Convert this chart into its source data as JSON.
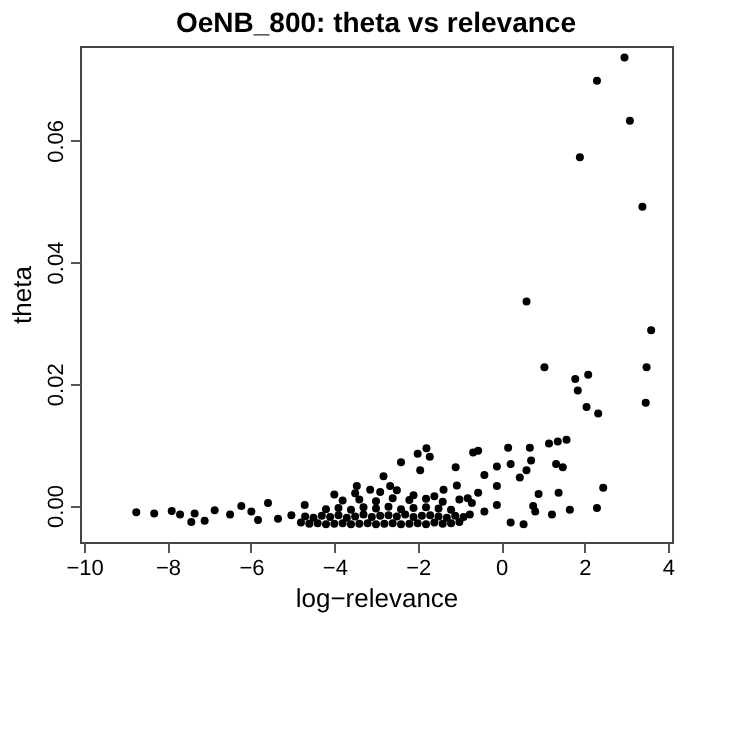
{
  "chart_data": {
    "type": "scatter",
    "title": "OeNB_800: theta vs relevance",
    "xlabel": "log−relevance",
    "ylabel": "theta",
    "xlim": [
      -10.1,
      4.1
    ],
    "ylim": [
      -0.006,
      0.0755
    ],
    "xticks": [
      -10,
      -8,
      -6,
      -4,
      -2,
      0,
      2,
      4
    ],
    "yticks": [
      {
        "value": 0,
        "label": "0.00"
      },
      {
        "value": 0.02,
        "label": "0.02"
      },
      {
        "value": 0.04,
        "label": "0.04"
      },
      {
        "value": 0.06,
        "label": "0.06"
      }
    ],
    "grid": false,
    "marker": "circle",
    "series": [
      {
        "color": "#000000",
        "x": [
          2.96,
          2.3,
          3.09,
          1.89,
          3.39,
          0.61,
          3.6,
          1.04,
          3.49,
          1.78,
          2.09,
          1.84,
          3.47,
          2.05,
          2.33,
          1.57,
          1.36,
          1.15,
          0.69,
          0.17,
          -1.79,
          -2.0,
          -0.55,
          -0.67,
          -1.71,
          -2.4,
          0.72,
          1.32,
          1.48,
          0.23,
          -0.1,
          -1.09,
          -1.94,
          -2.82,
          0.61,
          0.45,
          -0.4,
          2.45,
          1.38,
          0.9,
          -0.1,
          -0.55,
          -1.06,
          -1.38,
          -3.46,
          -3.14,
          -2.66,
          2.3,
          1.65,
          1.22,
          0.77,
          0.82,
          0.54,
          0.23,
          -0.1,
          -0.4,
          -0.75,
          -8.75,
          -8.32,
          -7.9,
          -7.7,
          -7.35,
          -7.43,
          -7.11,
          -6.87,
          -6.5,
          -6.23,
          -5.99,
          -5.59,
          -5.83,
          -5.35,
          -5.03,
          -4.71,
          -4.8,
          -4.6,
          -4.4,
          -4.2,
          -4.0,
          -3.8,
          -3.6,
          -3.4,
          -3.2,
          -3.0,
          -2.8,
          -2.6,
          -2.4,
          -2.2,
          -2.0,
          -1.8,
          -1.6,
          -1.4,
          -1.2,
          -1.0,
          -4.7,
          -4.5,
          -4.3,
          -4.1,
          -3.9,
          -3.7,
          -3.5,
          -3.3,
          -3.1,
          -2.9,
          -2.7,
          -2.5,
          -2.3,
          -2.1,
          -1.9,
          -1.7,
          -1.5,
          -1.3,
          -1.1,
          -0.9,
          -4.2,
          -3.9,
          -3.6,
          -3.3,
          -3.0,
          -2.7,
          -2.4,
          -2.1,
          -1.8,
          -1.5,
          -1.2,
          -3.8,
          -3.4,
          -3.0,
          -2.6,
          -2.2,
          -1.8,
          -1.4,
          -1.0,
          -0.7,
          -4.0,
          -3.5,
          -2.9,
          -2.5,
          -2.1,
          -1.6,
          -0.8
        ],
        "values": [
          0.0736,
          0.0698,
          0.0632,
          0.0572,
          0.0491,
          0.0335,
          0.0288,
          0.0227,
          0.0227,
          0.0208,
          0.0215,
          0.0189,
          0.0169,
          0.0162,
          0.0151,
          0.0108,
          0.0105,
          0.0102,
          0.0095,
          0.0095,
          0.0094,
          0.0085,
          0.009,
          0.0087,
          0.008,
          0.0071,
          0.0074,
          0.0068,
          0.0063,
          0.0068,
          0.0064,
          0.0063,
          0.0058,
          0.0048,
          0.0058,
          0.0046,
          0.005,
          0.0029,
          0.0021,
          0.0019,
          0.0032,
          0.0021,
          0.0033,
          0.0026,
          0.0032,
          0.0026,
          0.0032,
          -0.0004,
          -0.0007,
          -0.0015,
          -0.0001,
          -0.001,
          -0.0031,
          -0.0028,
          0.0001,
          -0.001,
          -0.0015,
          -0.0011,
          -0.0013,
          -0.0009,
          -0.0015,
          -0.0013,
          -0.0027,
          -0.0025,
          -0.0008,
          -0.0015,
          -0.0001,
          -0.001,
          0.0004,
          -0.0024,
          -0.0022,
          -0.0016,
          0.0001,
          -0.0028,
          -0.003,
          -0.0029,
          -0.0031,
          -0.003,
          -0.0029,
          -0.0031,
          -0.003,
          -0.0029,
          -0.0031,
          -0.003,
          -0.0029,
          -0.0031,
          -0.003,
          -0.0029,
          -0.0031,
          -0.0028,
          -0.003,
          -0.0029,
          -0.0027,
          -0.0018,
          -0.002,
          -0.0017,
          -0.0019,
          -0.0016,
          -0.002,
          -0.0018,
          -0.0015,
          -0.0019,
          -0.0017,
          -0.0016,
          -0.0018,
          -0.0015,
          -0.0019,
          -0.0017,
          -0.0016,
          -0.0018,
          -0.002,
          -0.0017,
          -0.0019,
          -0.0006,
          -0.0004,
          -0.0007,
          -0.0003,
          -0.0005,
          -0.0002,
          -0.0006,
          -0.0004,
          -0.0003,
          -0.0005,
          -0.0007,
          0.0008,
          0.001,
          0.0007,
          0.0012,
          0.0009,
          0.0011,
          0.0006,
          0.001,
          0.0004,
          0.0018,
          0.002,
          0.0022,
          0.0025,
          0.0017,
          0.0015,
          0.0012
        ]
      }
    ]
  }
}
